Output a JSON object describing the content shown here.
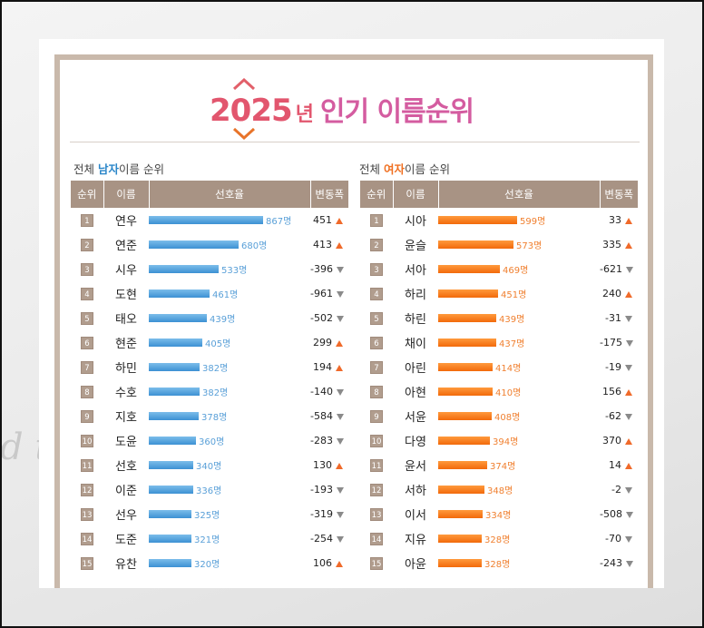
{
  "page": {
    "title_year": "2025",
    "title_unit": "년",
    "title_rest": "인기 이름순위",
    "bg_text": "d te"
  },
  "sections": {
    "male_prefix": "전체 ",
    "male_highlight": "남자",
    "male_suffix": "이름 순위",
    "female_prefix": "전체 ",
    "female_highlight": "여자",
    "female_suffix": "이름 순위"
  },
  "headers": {
    "rank": "순위",
    "name": "이름",
    "pref": "선호율",
    "change": "변동폭"
  },
  "colors": {
    "male_bar": "#3c91d3",
    "female_bar": "#f26a0b",
    "header_bg": "#a89384",
    "title_accent": "#e2566e",
    "up_arrow": "#f06a2a",
    "down_arrow": "#8a8a8a"
  },
  "chart_data": [
    {
      "type": "table",
      "title": "전체 남자이름 순위",
      "columns": [
        "순위",
        "이름",
        "선호율",
        "변동폭"
      ],
      "max_value": 867,
      "rows": [
        {
          "rank": "1",
          "name": "연우",
          "value": 867,
          "value_label": "867명",
          "change": "451",
          "dir": "up"
        },
        {
          "rank": "2",
          "name": "연준",
          "value": 680,
          "value_label": "680명",
          "change": "413",
          "dir": "up"
        },
        {
          "rank": "3",
          "name": "시우",
          "value": 533,
          "value_label": "533명",
          "change": "-396",
          "dir": "down"
        },
        {
          "rank": "4",
          "name": "도현",
          "value": 461,
          "value_label": "461명",
          "change": "-961",
          "dir": "down"
        },
        {
          "rank": "5",
          "name": "태오",
          "value": 439,
          "value_label": "439명",
          "change": "-502",
          "dir": "down"
        },
        {
          "rank": "6",
          "name": "현준",
          "value": 405,
          "value_label": "405명",
          "change": "299",
          "dir": "up"
        },
        {
          "rank": "7",
          "name": "하민",
          "value": 382,
          "value_label": "382명",
          "change": "194",
          "dir": "up"
        },
        {
          "rank": "8",
          "name": "수호",
          "value": 382,
          "value_label": "382명",
          "change": "-140",
          "dir": "down"
        },
        {
          "rank": "9",
          "name": "지호",
          "value": 378,
          "value_label": "378명",
          "change": "-584",
          "dir": "down"
        },
        {
          "rank": "10",
          "name": "도윤",
          "value": 360,
          "value_label": "360명",
          "change": "-283",
          "dir": "down"
        },
        {
          "rank": "11",
          "name": "선호",
          "value": 340,
          "value_label": "340명",
          "change": "130",
          "dir": "up"
        },
        {
          "rank": "12",
          "name": "이준",
          "value": 336,
          "value_label": "336명",
          "change": "-193",
          "dir": "down"
        },
        {
          "rank": "13",
          "name": "선우",
          "value": 325,
          "value_label": "325명",
          "change": "-319",
          "dir": "down"
        },
        {
          "rank": "14",
          "name": "도준",
          "value": 321,
          "value_label": "321명",
          "change": "-254",
          "dir": "down"
        },
        {
          "rank": "15",
          "name": "유찬",
          "value": 320,
          "value_label": "320명",
          "change": "106",
          "dir": "up"
        }
      ]
    },
    {
      "type": "table",
      "title": "전체 여자이름 순위",
      "columns": [
        "순위",
        "이름",
        "선호율",
        "변동폭"
      ],
      "max_value": 867,
      "rows": [
        {
          "rank": "1",
          "name": "시아",
          "value": 599,
          "value_label": "599명",
          "change": "33",
          "dir": "up"
        },
        {
          "rank": "2",
          "name": "윤슬",
          "value": 573,
          "value_label": "573명",
          "change": "335",
          "dir": "up"
        },
        {
          "rank": "3",
          "name": "서아",
          "value": 469,
          "value_label": "469명",
          "change": "-621",
          "dir": "down"
        },
        {
          "rank": "4",
          "name": "하리",
          "value": 451,
          "value_label": "451명",
          "change": "240",
          "dir": "up"
        },
        {
          "rank": "5",
          "name": "하린",
          "value": 439,
          "value_label": "439명",
          "change": "-31",
          "dir": "down"
        },
        {
          "rank": "6",
          "name": "채이",
          "value": 437,
          "value_label": "437명",
          "change": "-175",
          "dir": "down"
        },
        {
          "rank": "7",
          "name": "아린",
          "value": 414,
          "value_label": "414명",
          "change": "-19",
          "dir": "down"
        },
        {
          "rank": "8",
          "name": "아현",
          "value": 410,
          "value_label": "410명",
          "change": "156",
          "dir": "up"
        },
        {
          "rank": "9",
          "name": "서윤",
          "value": 408,
          "value_label": "408명",
          "change": "-62",
          "dir": "down"
        },
        {
          "rank": "10",
          "name": "다영",
          "value": 394,
          "value_label": "394명",
          "change": "370",
          "dir": "up"
        },
        {
          "rank": "11",
          "name": "윤서",
          "value": 374,
          "value_label": "374명",
          "change": "14",
          "dir": "up"
        },
        {
          "rank": "12",
          "name": "서하",
          "value": 348,
          "value_label": "348명",
          "change": "-2",
          "dir": "down"
        },
        {
          "rank": "13",
          "name": "이서",
          "value": 334,
          "value_label": "334명",
          "change": "-508",
          "dir": "down"
        },
        {
          "rank": "14",
          "name": "지유",
          "value": 328,
          "value_label": "328명",
          "change": "-70",
          "dir": "down"
        },
        {
          "rank": "15",
          "name": "아윤",
          "value": 328,
          "value_label": "328명",
          "change": "-243",
          "dir": "down"
        }
      ]
    }
  ]
}
